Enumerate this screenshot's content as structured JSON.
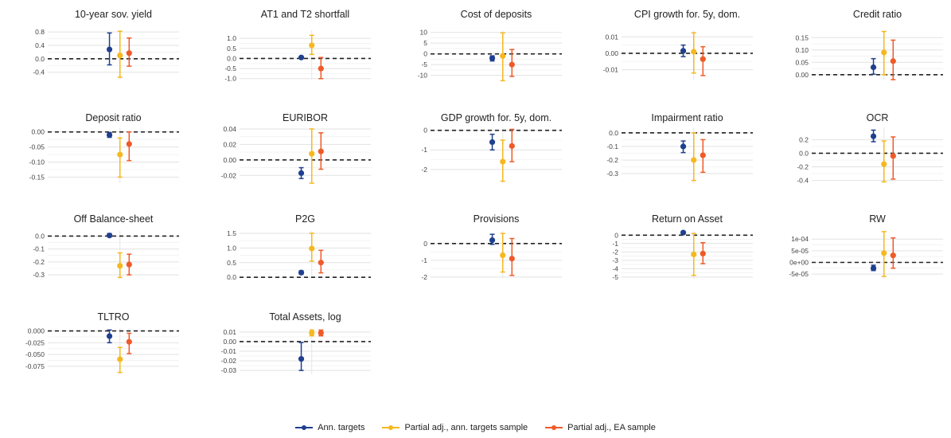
{
  "chart_data": {
    "type": "scatter",
    "subtype": "point-range",
    "layout": "facet-grid 4 rows x 5 columns",
    "grid": true,
    "reference_line": {
      "y": 0,
      "style": "dashed"
    },
    "legend": {
      "placement": "bottom",
      "entries": [
        {
          "name": "Ann. targets",
          "color": "#1f3f8f"
        },
        {
          "name": "Partial adj., ann. targets sample",
          "color": "#f5b820"
        },
        {
          "name": "Partial adj., EA sample",
          "color": "#ef5a28"
        }
      ]
    },
    "panels": [
      {
        "title": "10-year sov. yield",
        "yticks": [
          "0.8",
          "0.4",
          "0.0",
          "-0.4"
        ],
        "tickvals": [
          0.8,
          0.4,
          0.0,
          -0.4
        ],
        "ylim": [
          -0.62,
          0.85
        ],
        "series": [
          {
            "est": 0.28,
            "lo": -0.18,
            "hi": 0.77
          },
          {
            "est": 0.1,
            "lo": -0.55,
            "hi": 0.82
          },
          {
            "est": 0.17,
            "lo": -0.22,
            "hi": 0.62
          }
        ]
      },
      {
        "title": "AT1 and T2 shortfall",
        "yticks": [
          "1.0",
          "0.5",
          "0.0",
          "-0.5",
          "-1.0"
        ],
        "tickvals": [
          1.0,
          0.5,
          0.0,
          -0.5,
          -1.0
        ],
        "ylim": [
          -1.05,
          1.4
        ],
        "series": [
          {
            "est": 0.05,
            "lo": 0.02,
            "hi": 0.08
          },
          {
            "est": 0.65,
            "lo": 0.2,
            "hi": 1.15
          },
          {
            "est": -0.5,
            "lo": -1.0,
            "hi": 0.05
          }
        ]
      },
      {
        "title": "Cost of deposits",
        "yticks": [
          "10",
          "5",
          "0",
          "-5",
          "-10"
        ],
        "tickvals": [
          10,
          5,
          0,
          -5,
          -10
        ],
        "ylim": [
          -12,
          11
        ],
        "series": [
          {
            "est": -2.0,
            "lo": -3.3,
            "hi": -0.9
          },
          {
            "est": -1.0,
            "lo": -12.5,
            "hi": 9.8
          },
          {
            "est": -5.0,
            "lo": -10.5,
            "hi": 2.0
          }
        ]
      },
      {
        "title": "CPI growth for. 5y, dom.",
        "yticks": [
          "0.01",
          "0.00",
          "-0.01"
        ],
        "tickvals": [
          0.01,
          0.0,
          -0.01
        ],
        "ylim": [
          -0.016,
          0.014
        ],
        "series": [
          {
            "est": 0.0015,
            "lo": -0.002,
            "hi": 0.005
          },
          {
            "est": 0.001,
            "lo": -0.012,
            "hi": 0.0125
          },
          {
            "est": -0.0035,
            "lo": -0.0135,
            "hi": 0.004
          }
        ]
      },
      {
        "title": "Credit ratio",
        "yticks": [
          "0.15",
          "0.10",
          "0.05",
          "0.00"
        ],
        "tickvals": [
          0.15,
          0.1,
          0.05,
          0.0
        ],
        "ylim": [
          -0.02,
          0.18
        ],
        "series": [
          {
            "est": 0.03,
            "lo": 0.002,
            "hi": 0.065
          },
          {
            "est": 0.09,
            "lo": 0.0,
            "hi": 0.175
          },
          {
            "est": 0.055,
            "lo": -0.02,
            "hi": 0.14
          }
        ]
      },
      {
        "title": "Deposit ratio",
        "yticks": [
          "0.00",
          "-0.05",
          "-0.10",
          "-0.15"
        ],
        "tickvals": [
          0.0,
          -0.05,
          -0.1,
          -0.15
        ],
        "ylim": [
          -0.17,
          0.015
        ],
        "series": [
          {
            "est": -0.01,
            "lo": -0.018,
            "hi": -0.002
          },
          {
            "est": -0.075,
            "lo": -0.15,
            "hi": -0.02
          },
          {
            "est": -0.04,
            "lo": -0.095,
            "hi": 0.0
          }
        ]
      },
      {
        "title": "EURIBOR",
        "yticks": [
          "0.04",
          "0.02",
          "0.00",
          "-0.02"
        ],
        "tickvals": [
          0.04,
          0.02,
          0.0,
          -0.02
        ],
        "ylim": [
          -0.03,
          0.042
        ],
        "series": [
          {
            "est": -0.017,
            "lo": -0.024,
            "hi": -0.01
          },
          {
            "est": 0.008,
            "lo": -0.03,
            "hi": 0.04
          },
          {
            "est": 0.011,
            "lo": -0.012,
            "hi": 0.035
          }
        ]
      },
      {
        "title": "GDP growth for. 5y, dom.",
        "yticks": [
          "0",
          "-1",
          "-2"
        ],
        "tickvals": [
          0,
          -1,
          -2
        ],
        "ylim": [
          -2.7,
          0.15
        ],
        "series": [
          {
            "est": -0.6,
            "lo": -1.0,
            "hi": -0.2
          },
          {
            "est": -1.6,
            "lo": -2.6,
            "hi": -0.5
          },
          {
            "est": -0.8,
            "lo": -1.6,
            "hi": 0.05
          }
        ]
      },
      {
        "title": "Impairment ratio",
        "yticks": [
          "0.0",
          "-0.1",
          "-0.2",
          "-0.3"
        ],
        "tickvals": [
          0.0,
          -0.1,
          -0.2,
          -0.3
        ],
        "ylim": [
          -0.37,
          0.04
        ],
        "series": [
          {
            "est": -0.1,
            "lo": -0.145,
            "hi": -0.06
          },
          {
            "est": -0.2,
            "lo": -0.35,
            "hi": 0.0
          },
          {
            "est": -0.165,
            "lo": -0.29,
            "hi": -0.05
          }
        ]
      },
      {
        "title": "OCR",
        "yticks": [
          "0.2",
          "0.0",
          "-0.2",
          "-0.4"
        ],
        "tickvals": [
          0.2,
          0.0,
          -0.2,
          -0.4
        ],
        "ylim": [
          -0.44,
          0.38
        ],
        "series": [
          {
            "est": 0.25,
            "lo": 0.17,
            "hi": 0.34
          },
          {
            "est": -0.16,
            "lo": -0.42,
            "hi": 0.18
          },
          {
            "est": -0.04,
            "lo": -0.38,
            "hi": 0.24
          }
        ]
      },
      {
        "title": "Off Balance-sheet",
        "yticks": [
          "0.0",
          "-0.1",
          "-0.2",
          "-0.3"
        ],
        "tickvals": [
          0.0,
          -0.1,
          -0.2,
          -0.3
        ],
        "ylim": [
          -0.33,
          0.04
        ],
        "series": [
          {
            "est": 0.005,
            "lo": -0.005,
            "hi": 0.02
          },
          {
            "est": -0.23,
            "lo": -0.32,
            "hi": -0.13
          },
          {
            "est": -0.22,
            "lo": -0.3,
            "hi": -0.14
          }
        ]
      },
      {
        "title": "P2G",
        "yticks": [
          "1.5",
          "1.0",
          "0.5",
          "0.0"
        ],
        "tickvals": [
          1.5,
          1.0,
          0.5,
          0.0
        ],
        "ylim": [
          -0.05,
          1.58
        ],
        "series": [
          {
            "est": 0.16,
            "lo": 0.1,
            "hi": 0.22
          },
          {
            "est": 0.98,
            "lo": 0.55,
            "hi": 1.5
          },
          {
            "est": 0.5,
            "lo": 0.15,
            "hi": 0.92
          }
        ]
      },
      {
        "title": "Provisions",
        "yticks": [
          "0",
          "-1",
          "-2"
        ],
        "tickvals": [
          0,
          -1,
          -2
        ],
        "ylim": [
          -2.1,
          0.75
        ],
        "series": [
          {
            "est": 0.2,
            "lo": -0.05,
            "hi": 0.55
          },
          {
            "est": -0.7,
            "lo": -1.7,
            "hi": 0.6
          },
          {
            "est": -0.9,
            "lo": -1.9,
            "hi": 0.3
          }
        ]
      },
      {
        "title": "Return on Asset",
        "yticks": [
          "0",
          "-1",
          "-2",
          "-3",
          "-4",
          "-5"
        ],
        "tickvals": [
          0,
          -1,
          -2,
          -3,
          -4,
          -5
        ],
        "ylim": [
          -5.2,
          0.5
        ],
        "series": [
          {
            "est": 0.3,
            "lo": 0.15,
            "hi": 0.45
          },
          {
            "est": -2.3,
            "lo": -4.8,
            "hi": 0.2
          },
          {
            "est": -2.2,
            "lo": -3.4,
            "hi": -0.9
          }
        ]
      },
      {
        "title": "RW",
        "yticks": [
          "1e-04",
          "5e-05",
          "0e+00",
          "-5e-05"
        ],
        "tickvals": [
          0.0001,
          5e-05,
          0.0,
          -5e-05
        ],
        "ylim": [
          -7e-05,
          0.000135
        ],
        "series": [
          {
            "est": -2.5e-05,
            "lo": -3.5e-05,
            "hi": -1.2e-05
          },
          {
            "est": 4e-05,
            "lo": -6e-05,
            "hi": 0.000132
          },
          {
            "est": 3e-05,
            "lo": -2.5e-05,
            "hi": 0.000105
          }
        ]
      },
      {
        "title": "TLTRO",
        "yticks": [
          "0.000",
          "-0.025",
          "-0.050",
          "-0.075"
        ],
        "tickvals": [
          0.0,
          -0.025,
          -0.05,
          -0.075
        ],
        "ylim": [
          -0.092,
          0.006
        ],
        "series": [
          {
            "est": -0.011,
            "lo": -0.025,
            "hi": 0.002
          },
          {
            "est": -0.06,
            "lo": -0.088,
            "hi": -0.035
          },
          {
            "est": -0.023,
            "lo": -0.048,
            "hi": -0.005
          }
        ]
      },
      {
        "title": "Total Assets, log",
        "yticks": [
          "0.01",
          "0.00",
          "-0.01",
          "-0.02",
          "-0.03"
        ],
        "tickvals": [
          0.01,
          0.0,
          -0.01,
          -0.02,
          -0.03
        ],
        "ylim": [
          -0.034,
          0.014
        ],
        "series": [
          {
            "est": -0.018,
            "lo": -0.03,
            "hi": -0.001
          },
          {
            "est": 0.009,
            "lo": 0.006,
            "hi": 0.012
          },
          {
            "est": 0.009,
            "lo": 0.006,
            "hi": 0.012
          }
        ]
      }
    ]
  }
}
